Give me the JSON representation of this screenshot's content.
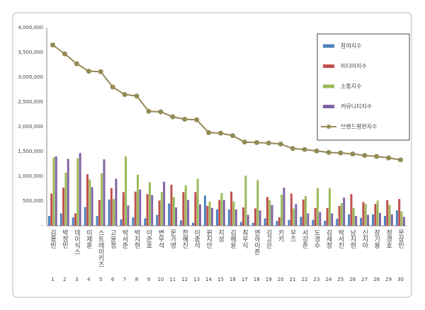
{
  "chart_data": {
    "type": "bar",
    "categories": [
      "김용빈",
      "박정민",
      "데이식스",
      "이제훈",
      "스트레이키즈",
      "고윤정",
      "박서준",
      "박지현",
      "이준호",
      "변우석",
      "문가영",
      "한혜진",
      "이종석",
      "원지안",
      "지성",
      "김혜윤",
      "최우식",
      "엔하이픈",
      "김고은",
      "키키",
      "우즈",
      "서강준",
      "도경수",
      "김세정",
      "박서진",
      "남지현",
      "신지아",
      "장기용",
      "정경호",
      "문상민"
    ],
    "ranks": [
      1,
      2,
      3,
      4,
      5,
      6,
      7,
      8,
      9,
      10,
      11,
      12,
      13,
      14,
      15,
      16,
      17,
      18,
      19,
      20,
      21,
      22,
      23,
      24,
      25,
      26,
      27,
      28,
      29,
      30
    ],
    "series": [
      {
        "name": "참여지수",
        "color": "#4f81bd",
        "values": [
          200000,
          250000,
          170000,
          380000,
          200000,
          530000,
          130000,
          170000,
          150000,
          220000,
          450000,
          110000,
          60000,
          610000,
          330000,
          330000,
          80000,
          60000,
          150000,
          100000,
          120000,
          180000,
          120000,
          100000,
          140000,
          230000,
          160000,
          230000,
          200000,
          310000
        ]
      },
      {
        "name": "미디어지수",
        "color": "#c0504d",
        "values": [
          650000,
          770000,
          250000,
          1040000,
          520000,
          760000,
          680000,
          690000,
          640000,
          510000,
          830000,
          680000,
          680000,
          400000,
          520000,
          690000,
          370000,
          350000,
          580000,
          170000,
          650000,
          530000,
          360000,
          360000,
          400000,
          640000,
          480000,
          440000,
          520000,
          540000
        ]
      },
      {
        "name": "소통지수",
        "color": "#9bbb59",
        "values": [
          1380000,
          1070000,
          1360000,
          930000,
          1060000,
          540000,
          1400000,
          1030000,
          880000,
          680000,
          580000,
          820000,
          950000,
          490000,
          660000,
          490000,
          1010000,
          920000,
          520000,
          630000,
          350000,
          600000,
          760000,
          760000,
          460000,
          360000,
          440000,
          510000,
          420000,
          290000
        ]
      },
      {
        "name": "커뮤니티지수",
        "color": "#8064a2",
        "values": [
          1400000,
          1350000,
          1470000,
          780000,
          1340000,
          950000,
          410000,
          730000,
          620000,
          890000,
          370000,
          520000,
          430000,
          360000,
          520000,
          330000,
          220000,
          310000,
          420000,
          770000,
          440000,
          250000,
          280000,
          250000,
          570000,
          200000,
          220000,
          260000,
          230000,
          180000
        ]
      },
      {
        "name": "브랜드평판지수",
        "type": "line",
        "color": "#948a54",
        "values": [
          3650000,
          3470000,
          3270000,
          3120000,
          3110000,
          2800000,
          2650000,
          2620000,
          2310000,
          2300000,
          2200000,
          2150000,
          2140000,
          1880000,
          1870000,
          1820000,
          1690000,
          1680000,
          1670000,
          1650000,
          1560000,
          1540000,
          1510000,
          1480000,
          1470000,
          1450000,
          1420000,
          1400000,
          1370000,
          1330000
        ]
      }
    ],
    "ylim": [
      0,
      4000000
    ],
    "yticks": [
      {
        "value": 0,
        "label": "-"
      },
      {
        "value": 500000,
        "label": "500,000"
      },
      {
        "value": 1000000,
        "label": "1,000,000"
      },
      {
        "value": 1500000,
        "label": "1,500,000"
      },
      {
        "value": 2000000,
        "label": "2,000,000"
      },
      {
        "value": 2500000,
        "label": "2,500,000"
      },
      {
        "value": 3000000,
        "label": "3,000,000"
      },
      {
        "value": 3500000,
        "label": "3,500,000"
      },
      {
        "value": 4000000,
        "label": "4,000,000"
      }
    ],
    "grid": false,
    "legend": "top-right"
  }
}
